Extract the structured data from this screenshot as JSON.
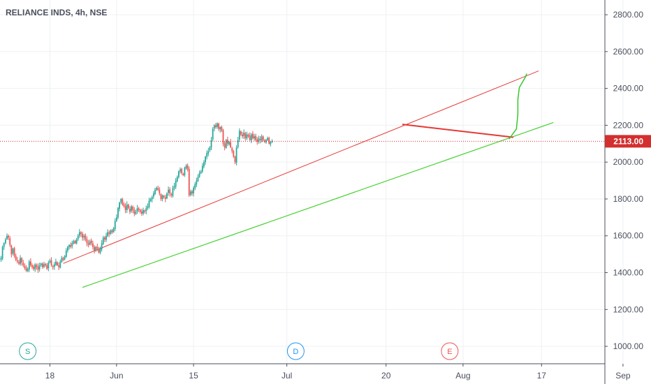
{
  "chart_data": {
    "type": "candlestick",
    "title": "RELIANCE INDS, 4h, NSE",
    "current_price_label": "2113.00",
    "current_price": 2113,
    "y_ticks": [
      1000,
      1200,
      1400,
      1600,
      1800,
      2000,
      2200,
      2400,
      2600,
      2800
    ],
    "y_tick_labels": [
      "1000.00",
      "1200.00",
      "1400.00",
      "1600.00",
      "1800.00",
      "2000.00",
      "2200.00",
      "2400.00",
      "2600.00",
      "2800.00"
    ],
    "ylim": [
      860,
      2880
    ],
    "x_ticks": [
      {
        "label": "18",
        "bar": 33
      },
      {
        "label": "Jun",
        "bar": 78
      },
      {
        "label": "15",
        "bar": 130
      },
      {
        "label": "Jul",
        "bar": 193
      },
      {
        "label": "20",
        "bar": 260
      },
      {
        "label": "Aug",
        "bar": 312
      },
      {
        "label": "17",
        "bar": 365
      },
      {
        "label": "Sep",
        "bar": 420
      }
    ],
    "events": [
      {
        "label": "S",
        "bar": 18,
        "color": "#26a69a"
      },
      {
        "label": "D",
        "bar": 199,
        "color": "#2196f3"
      },
      {
        "label": "E",
        "bar": 303,
        "color": "#ef5350"
      }
    ],
    "colors": {
      "up": "#26a69a",
      "down": "#ef5350",
      "upper_channel": "#e53935",
      "lower_channel": "#4cd137",
      "projection": "#36c72c",
      "price_line": "#d32f2f",
      "axis_text": "#4a4f5c",
      "grid": "#eef0f3"
    },
    "closes": [
      1480,
      1540,
      1560,
      1580,
      1600,
      1590,
      1550,
      1500,
      1530,
      1490,
      1470,
      1460,
      1450,
      1480,
      1455,
      1440,
      1425,
      1410,
      1420,
      1460,
      1440,
      1430,
      1420,
      1445,
      1430,
      1415,
      1440,
      1450,
      1430,
      1445,
      1440,
      1420,
      1455,
      1465,
      1440,
      1430,
      1445,
      1460,
      1440,
      1430,
      1460,
      1480,
      1470,
      1490,
      1520,
      1540,
      1550,
      1540,
      1560,
      1570,
      1560,
      1580,
      1600,
      1620,
      1610,
      1590,
      1600,
      1580,
      1560,
      1550,
      1570,
      1560,
      1540,
      1520,
      1540,
      1530,
      1510,
      1530,
      1560,
      1590,
      1580,
      1600,
      1620,
      1610,
      1630,
      1620,
      1640,
      1680,
      1700,
      1750,
      1780,
      1800,
      1770,
      1760,
      1740,
      1770,
      1750,
      1730,
      1760,
      1740,
      1720,
      1730,
      1750,
      1740,
      1730,
      1720,
      1740,
      1730,
      1750,
      1760,
      1790,
      1800,
      1810,
      1830,
      1850,
      1860,
      1850,
      1830,
      1800,
      1820,
      1810,
      1800,
      1830,
      1850,
      1830,
      1820,
      1860,
      1870,
      1900,
      1920,
      1950,
      1960,
      1940,
      1930,
      1970,
      1980,
      1960,
      1820,
      1840,
      1830,
      1860,
      1880,
      1900,
      1920,
      1940,
      1950,
      1980,
      2000,
      2030,
      2050,
      2060,
      2080,
      2120,
      2180,
      2200,
      2190,
      2210,
      2180,
      2190,
      2170,
      2100,
      2080,
      2120,
      2100,
      2110,
      2080,
      2060,
      2030,
      2000,
      2080,
      2120,
      2170,
      2150,
      2140,
      2160,
      2130,
      2150,
      2140,
      2120,
      2150,
      2130,
      2140,
      2120,
      2110,
      2130,
      2120,
      2140,
      2120,
      2110,
      2120,
      2130,
      2100,
      2110,
      2113
    ]
  }
}
